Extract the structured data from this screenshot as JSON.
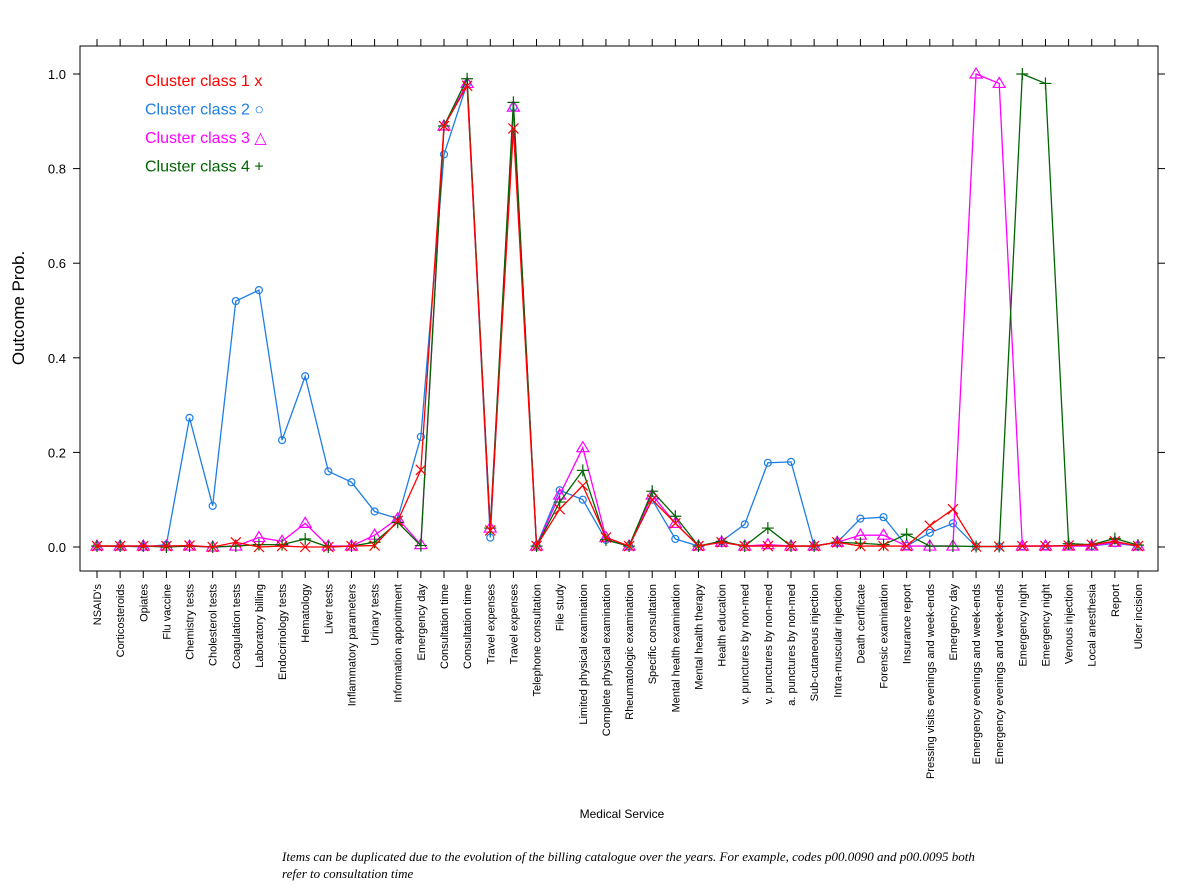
{
  "chart_data": {
    "type": "line",
    "title": "",
    "xlabel": "Medical Service",
    "ylabel": "Outcome Prob.",
    "ylim": [
      0,
      1.0
    ],
    "yticks": [
      "0.0",
      "0.2",
      "0.4",
      "0.6",
      "0.8",
      "1.0"
    ],
    "grid": false,
    "legend_position": "top-left",
    "categories": [
      "NSAID's",
      "Corticosteroids",
      "Opiates",
      "Flu vaccine",
      "Chemistry tests",
      "Cholesterol tests",
      "Coagulation tests",
      "Laboratory billing",
      "Endocrinology tests",
      "Hematology",
      "Liver tests",
      "Inflammatory parameters",
      "Urinary tests",
      "Information appointment",
      "Emergency day",
      "Consultation time",
      "Consultation time",
      "Travel expenses",
      "Travel expenses",
      "Telephone consultation",
      "File study",
      "Limited physical examination",
      "Complete physical examination",
      "Rheumatologic examination",
      "Specific consultation",
      "Mental health examination",
      "Mental health therapy",
      "Health education",
      "v. punctures by non-med",
      "v. punctures by non-med",
      "a. punctures by non-med",
      "Sub-cutaneous injection",
      "Intra-muscular injection",
      "Death certificate",
      "Forensic examination",
      "Insurance report",
      "Pressing visits evenings and week-ends",
      "Emergency day",
      "Emergency evenings and week-ends",
      "Emergency evenings and week-ends",
      "Emergency night",
      "Emergency night",
      "Venous injection",
      "Local anesthesia",
      "Report",
      "Ulcer incision"
    ],
    "series": [
      {
        "name": "Cluster class 1 x",
        "color": "#ff0000",
        "marker": "x",
        "values": [
          0.002,
          0.002,
          0.002,
          0.002,
          0.003,
          0.0,
          0.01,
          0.0,
          0.002,
          0.0,
          0.0,
          0.002,
          0.003,
          0.055,
          0.163,
          0.89,
          0.975,
          0.035,
          0.885,
          0.002,
          0.08,
          0.13,
          0.02,
          0.002,
          0.1,
          0.05,
          0.002,
          0.01,
          0.002,
          0.002,
          0.002,
          0.002,
          0.01,
          0.002,
          0.002,
          0.002,
          0.045,
          0.08,
          0.001,
          0.001,
          0.002,
          0.002,
          0.003,
          0.005,
          0.012,
          0.002
        ]
      },
      {
        "name": "Cluster class 2 ○",
        "color": "#1e7ee6",
        "marker": "circle",
        "values": [
          0.002,
          0.002,
          0.0,
          0.005,
          0.273,
          0.087,
          0.52,
          0.543,
          0.226,
          0.361,
          0.16,
          0.137,
          0.075,
          0.06,
          0.233,
          0.83,
          0.98,
          0.02,
          0.93,
          0.003,
          0.12,
          0.1,
          0.015,
          0.002,
          0.1,
          0.017,
          0.002,
          0.012,
          0.048,
          0.178,
          0.18,
          0.002,
          0.01,
          0.06,
          0.063,
          0.002,
          0.03,
          0.05,
          0.001,
          0.001,
          0.002,
          0.002,
          0.003,
          0.002,
          0.008,
          0.002
        ]
      },
      {
        "name": "Cluster class 3 △",
        "color": "#ff00ff",
        "marker": "triangle",
        "values": [
          0.002,
          0.002,
          0.002,
          0.002,
          0.002,
          0.0,
          0.002,
          0.02,
          0.012,
          0.05,
          0.002,
          0.002,
          0.025,
          0.06,
          0.005,
          0.89,
          0.98,
          0.04,
          0.93,
          0.002,
          0.11,
          0.21,
          0.02,
          0.002,
          0.11,
          0.05,
          0.002,
          0.01,
          0.002,
          0.005,
          0.002,
          0.002,
          0.01,
          0.025,
          0.025,
          0.002,
          0.002,
          0.002,
          1.0,
          0.98,
          0.002,
          0.002,
          0.002,
          0.002,
          0.01,
          0.002
        ]
      },
      {
        "name": "Cluster class 4 +",
        "color": "#006400",
        "marker": "plus",
        "values": [
          0.002,
          0.002,
          0.002,
          0.0,
          0.002,
          0.0,
          0.002,
          0.005,
          0.005,
          0.017,
          0.0,
          0.002,
          0.01,
          0.052,
          0.003,
          0.89,
          0.99,
          0.04,
          0.94,
          0.002,
          0.095,
          0.162,
          0.015,
          0.002,
          0.118,
          0.065,
          0.002,
          0.012,
          0.002,
          0.04,
          0.002,
          0.002,
          0.01,
          0.008,
          0.005,
          0.027,
          0.002,
          0.002,
          0.001,
          0.001,
          1.0,
          0.98,
          0.007,
          0.005,
          0.018,
          0.004
        ]
      }
    ]
  },
  "caption": "Items can be duplicated due to the evolution of the billing catalogue over the years. For example, codes p00.0090 and p00.0095 both refer to consultation time"
}
